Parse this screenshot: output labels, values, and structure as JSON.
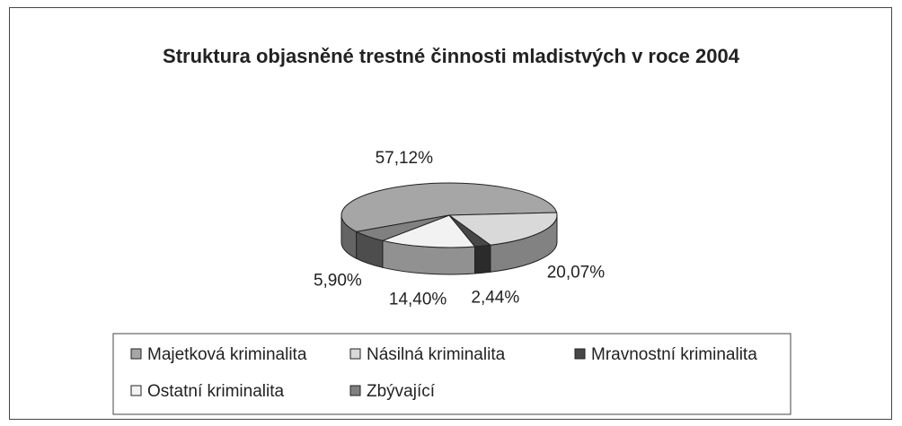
{
  "chart_data": {
    "type": "pie",
    "title": "Struktura objasněné trestné činnosti mladistvých v roce 2004",
    "categories": [
      "Majetková kriminalita",
      "Násilná kriminalita",
      "Mravnostní kriminalita",
      "Ostatní kriminalita",
      "Zbývající"
    ],
    "values": [
      57.12,
      20.07,
      2.44,
      14.4,
      5.9
    ],
    "value_labels": [
      "57,12%",
      "20,07%",
      "2,44%",
      "14,40%",
      "5,90%"
    ],
    "colors": [
      "#a6a6a6",
      "#d9d9d9",
      "#474747",
      "#f2f2f2",
      "#808080"
    ],
    "legend": "bottom"
  }
}
